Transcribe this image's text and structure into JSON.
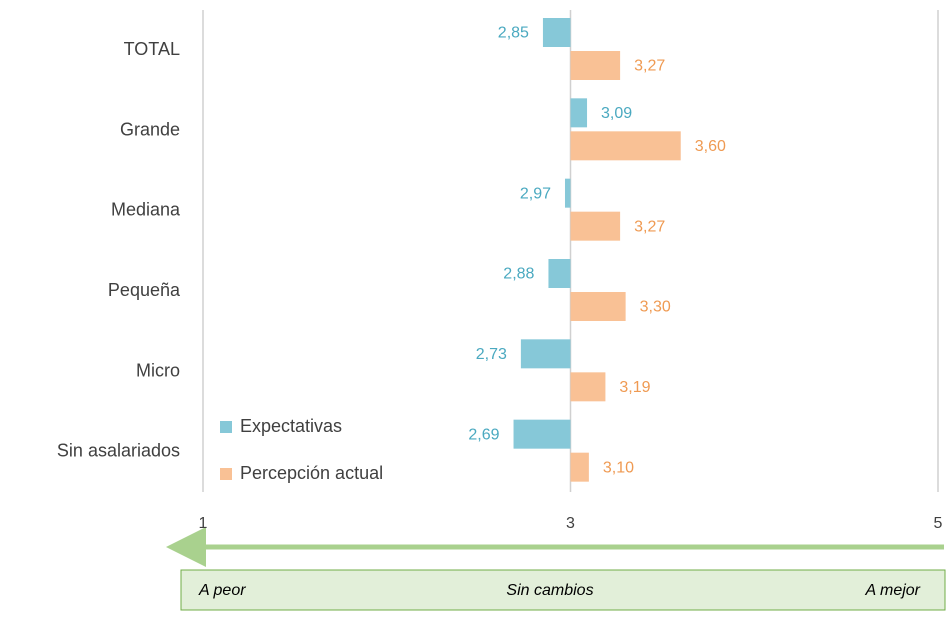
{
  "chart_data": {
    "type": "hbar_diverging",
    "categories": [
      "TOTAL",
      "Grande",
      "Mediana",
      "Pequeña",
      "Micro",
      "Sin asalariados"
    ],
    "series": [
      {
        "name": "Expectativas",
        "color": "#86c8d8",
        "label_color": "#4aa9c0",
        "values": [
          2.85,
          3.09,
          2.97,
          2.88,
          2.73,
          2.69
        ],
        "value_labels": [
          "2,85",
          "3,09",
          "2,97",
          "2,88",
          "2,73",
          "2,69"
        ]
      },
      {
        "name": "Percepción actual",
        "color": "#f9c195",
        "label_color": "#ef9a52",
        "values": [
          3.27,
          3.6,
          3.27,
          3.3,
          3.19,
          3.1
        ],
        "value_labels": [
          "3,27",
          "3,60",
          "3,27",
          "3,30",
          "3,19",
          "3,10"
        ]
      }
    ],
    "xlim": [
      1,
      5
    ],
    "xticks": [
      1,
      3,
      5
    ],
    "baseline": 3,
    "grid": true,
    "legend": "lower left",
    "annotations": [
      "A peor",
      "Sin cambios",
      "A mejor"
    ]
  }
}
